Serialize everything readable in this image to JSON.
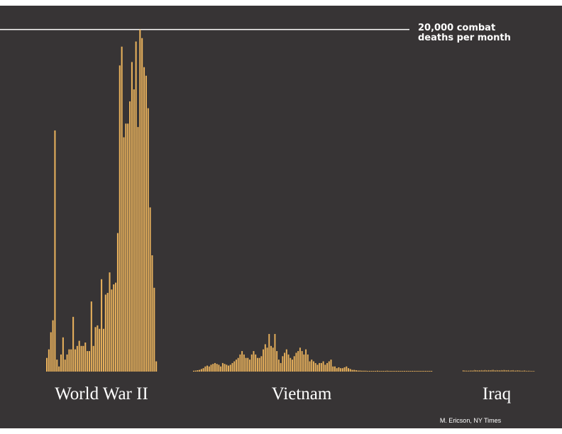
{
  "chart_data": {
    "type": "bar",
    "title": "",
    "xlabel": "",
    "ylabel": "",
    "ylim": [
      0,
      20400
    ],
    "grid": false,
    "bar_color": "#E8B15C",
    "background_color": "#373435",
    "reference_line": {
      "value": 20000,
      "label_line1": "20,000 combat",
      "label_line2": "deaths per month",
      "color": "#ffffff"
    },
    "groups": [
      {
        "name": "World War II",
        "values": [
          800,
          1300,
          2300,
          3000,
          14100,
          700,
          300,
          1000,
          2000,
          700,
          1000,
          1300,
          1300,
          3200,
          1300,
          1500,
          1800,
          1500,
          1500,
          1700,
          1200,
          1200,
          4100,
          1500,
          2600,
          2700,
          2500,
          5400,
          2500,
          4500,
          4600,
          5800,
          4800,
          5100,
          5200,
          8100,
          17900,
          19000,
          13700,
          14500,
          14500,
          15800,
          18100,
          16500,
          19300,
          14300,
          20000,
          19500,
          17800,
          17300,
          15400,
          9600,
          6800,
          4900,
          600
        ]
      },
      {
        "name": "Vietnam",
        "values": [
          50,
          60,
          80,
          100,
          150,
          200,
          300,
          350,
          300,
          400,
          450,
          500,
          450,
          400,
          300,
          500,
          450,
          400,
          350,
          400,
          500,
          600,
          700,
          800,
          1000,
          1200,
          1000,
          800,
          800,
          700,
          1000,
          1200,
          1000,
          800,
          800,
          900,
          1300,
          1600,
          1400,
          2200,
          1500,
          1400,
          2200,
          1200,
          700,
          500,
          900,
          1100,
          1300,
          1000,
          800,
          700,
          900,
          1100,
          1200,
          1400,
          1200,
          1000,
          1300,
          1000,
          600,
          700,
          600,
          500,
          400,
          500,
          500,
          600,
          400,
          500,
          600,
          700,
          300,
          300,
          200,
          250,
          200,
          200,
          250,
          300,
          200,
          150,
          100,
          100,
          80,
          60,
          60,
          50,
          50,
          50,
          40,
          40,
          40,
          40,
          40,
          50,
          40,
          40,
          40,
          40,
          50,
          40,
          40,
          40,
          40,
          40,
          40,
          40,
          40,
          40,
          40,
          40,
          40,
          40,
          40,
          40,
          40,
          40,
          40,
          40,
          40,
          40,
          40,
          40
        ]
      },
      {
        "name": "Iraq",
        "values": [
          80,
          70,
          60,
          60,
          50,
          60,
          60,
          70,
          60,
          70,
          100,
          80,
          80,
          70,
          80,
          70,
          90,
          70,
          80,
          100,
          80,
          70,
          90,
          80,
          80,
          100,
          110,
          80,
          70,
          90,
          80,
          80,
          70,
          90,
          80,
          100,
          90,
          80,
          80,
          90,
          60,
          70,
          80,
          90,
          60,
          60,
          70,
          80,
          70,
          60,
          50,
          50,
          60,
          70,
          50,
          40,
          50,
          50,
          40,
          40,
          40,
          40
        ]
      }
    ]
  },
  "credit": "M. Ericson, NY Times"
}
